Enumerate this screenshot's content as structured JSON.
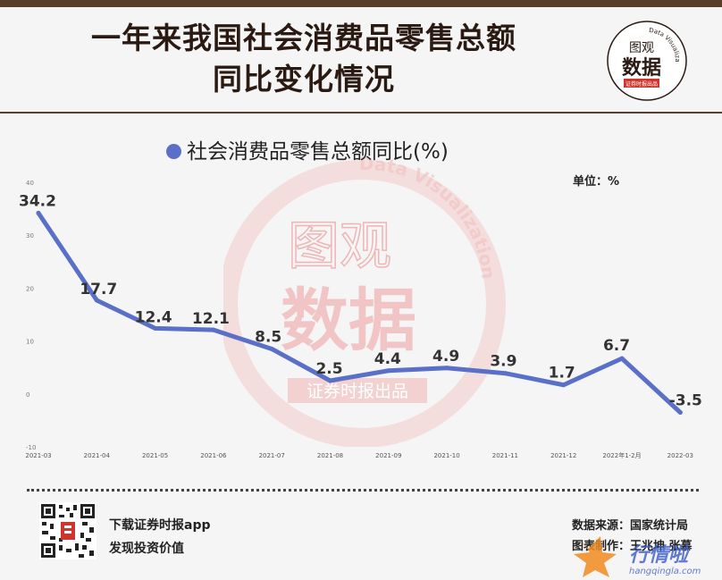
{
  "header": {
    "title_line1": "一年来我国社会消费品零售总额",
    "title_line2": "同比变化情况"
  },
  "logo": {
    "text_top": "图观",
    "text_main": "数据",
    "tag": "证券时报出品",
    "arc_text": "Data Visualization"
  },
  "legend": {
    "label": "社会消费品零售总额同比(%)"
  },
  "unit_label": "单位：%",
  "watermark": {
    "top": "图观",
    "main": "数据",
    "tag": "证券时报出品",
    "arc": "Data Visualization"
  },
  "chart_data": {
    "type": "line",
    "categories": [
      "2021-03",
      "2021-04",
      "2021-05",
      "2021-06",
      "2021-07",
      "2021-08",
      "2021-09",
      "2021-10",
      "2021-11",
      "2021-12",
      "2022年1-2月",
      "2022-03"
    ],
    "series": [
      {
        "name": "社会消费品零售总额同比(%)",
        "values": [
          34.2,
          17.7,
          12.4,
          12.1,
          8.5,
          2.5,
          4.4,
          4.9,
          3.9,
          1.7,
          6.7,
          -3.5
        ]
      }
    ],
    "data_labels": [
      "34.2",
      "17.7",
      "12.4",
      "12.1",
      "8.5",
      "2.5",
      "4.4",
      "4.9",
      "3.9",
      "1.7",
      "6.7",
      "-3.5"
    ],
    "y_ticks": [
      -10,
      0,
      10,
      20,
      30,
      40
    ],
    "y_tick_labels": [
      "-10",
      "0",
      "10",
      "20",
      "30",
      "40"
    ],
    "ylim": [
      -10,
      40
    ],
    "line_color": "#5a6fc8",
    "grid": false
  },
  "footer": {
    "app_line1": "下载证券时报app",
    "app_line2": "发现投资价值",
    "source": "数据来源：国家统计局",
    "credit": "图表制作：王兆坤 张慕",
    "corner_brand": "行情啦",
    "corner_url": "hangqingla.com"
  },
  "colors": {
    "brown": "#5a3e2a",
    "series": "#5a6fc8",
    "watermark": "#e7a6a6",
    "corner": "#f08a1f",
    "corner_text": "#3a5cc8"
  }
}
